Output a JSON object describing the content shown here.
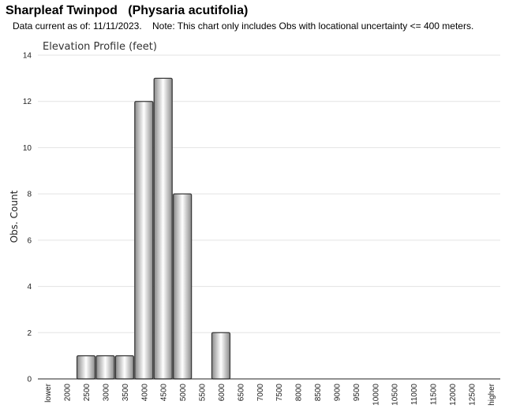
{
  "header": {
    "species_title": "Sharpleaf Twinpod   (Physaria acutifolia)",
    "note": "Data current as of: 11/11/2023.    Note: This chart only includes Obs with locational uncertainty <= 400 meters."
  },
  "chart_data": {
    "type": "bar",
    "title": "Elevation Profile (feet)",
    "xlabel": "",
    "ylabel": "Obs. Count",
    "categories": [
      "lower",
      "2000",
      "2500",
      "3000",
      "3500",
      "4000",
      "4500",
      "5000",
      "5500",
      "6000",
      "6500",
      "7000",
      "7500",
      "8000",
      "8500",
      "9000",
      "9500",
      "10000",
      "10500",
      "11000",
      "11500",
      "12000",
      "12500",
      "higher"
    ],
    "values": [
      0,
      0,
      1,
      1,
      1,
      12,
      13,
      8,
      0,
      2,
      0,
      0,
      0,
      0,
      0,
      0,
      0,
      0,
      0,
      0,
      0,
      0,
      0,
      0
    ],
    "ylim": [
      0,
      14
    ],
    "yticks": [
      0,
      2,
      4,
      6,
      8,
      10,
      12,
      14
    ],
    "grid": true,
    "legend": "none",
    "colors": {
      "bar_light": "#ffffff",
      "bar_dark": "#8a8a8a",
      "bar_stroke": "#3a3a3a",
      "grid": "#e3e3e3",
      "axis": "#222222"
    }
  }
}
